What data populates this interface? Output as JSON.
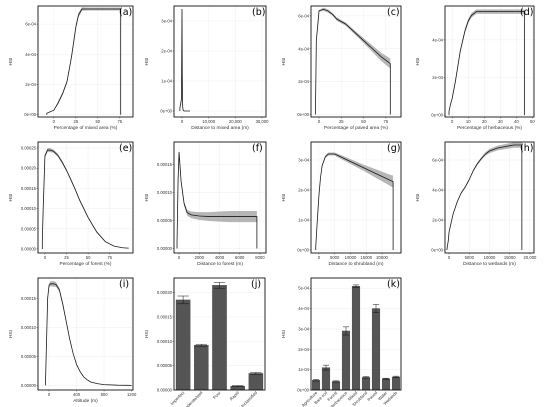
{
  "colors": {
    "line": "#1a1a1a",
    "band": "#9e9e9e",
    "bar": "#555555",
    "grid": "#ebebeb"
  },
  "chart_data": [
    {
      "label": "(a)",
      "type": "line",
      "xlabel": "Percentage of mixed area (%)",
      "ylabel": "HSI",
      "xlim": [
        -18,
        90
      ],
      "ylim": [
        -1.5e-05,
        0.00072
      ],
      "xticks": [
        {
          "v": 0,
          "t": "0"
        },
        {
          "v": 25,
          "t": "25"
        },
        {
          "v": 50,
          "t": "50"
        },
        {
          "v": 75,
          "t": "75"
        }
      ],
      "yticks": [
        {
          "v": 0,
          "t": "0e+00"
        },
        {
          "v": 0.0002,
          "t": "2e-04"
        },
        {
          "v": 0.0004,
          "t": "4e-04"
        },
        {
          "v": 0.0006,
          "t": "6e-04"
        }
      ],
      "x": [
        -8,
        -8,
        -8,
        0,
        5,
        10,
        15,
        20,
        22,
        25,
        28,
        32,
        38,
        50,
        62,
        70,
        76,
        76,
        76
      ],
      "y": [
        0,
        0,
        1e-05,
        3e-05,
        8e-05,
        0.00014,
        0.00022,
        0.00038,
        0.00046,
        0.00058,
        0.00066,
        0.0007,
        0.0007,
        0.0007,
        0.0007,
        0.0007,
        0.0007,
        5e-05,
        0
      ],
      "band": [
        0,
        0,
        0,
        0,
        1e-05,
        1e-05,
        1e-05,
        1e-05,
        1.5e-05,
        1.5e-05,
        1.5e-05,
        1.2e-05,
        1e-05,
        1e-05,
        1e-05,
        1e-05,
        1e-05,
        0,
        0
      ]
    },
    {
      "label": "(b)",
      "type": "line",
      "xlabel": "Distance to mixed area (m)",
      "ylabel": "HSI",
      "xlim": [
        -3000,
        31500
      ],
      "ylim": [
        -2e-05,
        0.00035
      ],
      "xticks": [
        {
          "v": 0,
          "t": "0"
        },
        {
          "v": 10000,
          "t": "10,000"
        },
        {
          "v": 20000,
          "t": "20,000"
        },
        {
          "v": 30000,
          "t": "30,000"
        }
      ],
      "yticks": [
        {
          "v": 0,
          "t": "0e+00"
        },
        {
          "v": 0.0001,
          "t": "1e-04"
        },
        {
          "v": 0.0002,
          "t": "2e-04"
        },
        {
          "v": 0.0003,
          "t": "3e-04"
        }
      ],
      "x": [
        -800,
        -800,
        -200,
        0,
        100,
        200,
        300,
        500,
        800,
        1500,
        3000
      ],
      "y": [
        0,
        1e-05,
        4e-05,
        0.00034,
        0.00012,
        3e-05,
        1e-05,
        2e-06,
        0,
        0,
        0
      ],
      "band": [
        0,
        0,
        0,
        5e-06,
        2e-06,
        0,
        0,
        0,
        0,
        0,
        0
      ]
    },
    {
      "label": "(c)",
      "type": "line",
      "xlabel": "Percentage of paved area (%)",
      "ylabel": "HSI",
      "xlim": [
        -9,
        92
      ],
      "ylim": [
        -1.5e-05,
        0.00066
      ],
      "xticks": [
        {
          "v": 0,
          "t": "0"
        },
        {
          "v": 25,
          "t": "25"
        },
        {
          "v": 50,
          "t": "50"
        },
        {
          "v": 75,
          "t": "75"
        }
      ],
      "yticks": [
        {
          "v": 0,
          "t": "0e+00"
        },
        {
          "v": 0.0002,
          "t": "2e-04"
        },
        {
          "v": 0.0004,
          "t": "4e-04"
        },
        {
          "v": 0.0006,
          "t": "6e-04"
        }
      ],
      "x": [
        -4,
        -4,
        -3,
        0,
        5,
        10,
        15,
        20,
        30,
        40,
        50,
        60,
        70,
        80,
        80,
        80
      ],
      "y": [
        0,
        3e-05,
        0.00045,
        0.00063,
        0.00064,
        0.00063,
        0.00061,
        0.00058,
        0.00055,
        0.0005,
        0.00045,
        0.0004,
        0.00035,
        0.00031,
        3e-05,
        0
      ],
      "band": [
        0,
        0,
        0,
        5e-06,
        1e-05,
        1e-05,
        8e-06,
        1e-05,
        1e-05,
        1.2e-05,
        1.5e-05,
        2e-05,
        2.5e-05,
        3e-05,
        0,
        0
      ]
    },
    {
      "label": "(d)",
      "type": "line",
      "xlabel": "Percentage of herbaceous (%)",
      "ylabel": "HSI",
      "xlim": [
        -4.5,
        51
      ],
      "ylim": [
        -1e-05,
        0.00058
      ],
      "xticks": [
        {
          "v": 0,
          "t": "0"
        },
        {
          "v": 10,
          "t": "10"
        },
        {
          "v": 20,
          "t": "20"
        },
        {
          "v": 30,
          "t": "30"
        },
        {
          "v": 40,
          "t": "40"
        },
        {
          "v": 50,
          "t": "50"
        }
      ],
      "yticks": [
        {
          "v": 0,
          "t": "0e+00"
        },
        {
          "v": 0.0002,
          "t": "2e-04"
        },
        {
          "v": 0.0004,
          "t": "4e-04"
        }
      ],
      "x": [
        -2,
        -2,
        -1,
        0,
        2,
        5,
        8,
        10,
        12,
        15,
        20,
        30,
        40,
        45,
        45,
        45
      ],
      "y": [
        0,
        2e-05,
        6e-05,
        9e-05,
        0.00018,
        0.00034,
        0.00045,
        0.0005,
        0.00053,
        0.00055,
        0.00055,
        0.00055,
        0.00055,
        0.00055,
        2e-05,
        0
      ],
      "band": [
        0,
        0,
        0,
        5e-06,
        8e-06,
        1e-05,
        1.2e-05,
        1.2e-05,
        1.2e-05,
        1.2e-05,
        1.2e-05,
        1.2e-05,
        1.2e-05,
        1.2e-05,
        0,
        0
      ]
    },
    {
      "label": "(e)",
      "type": "line",
      "xlabel": "Percentage of forest (%)",
      "ylabel": "HSI",
      "xlim": [
        -8,
        102
      ],
      "ylim": [
        -1e-05,
        0.000265
      ],
      "xticks": [
        {
          "v": 0,
          "t": "0"
        },
        {
          "v": 25,
          "t": "25"
        },
        {
          "v": 50,
          "t": "50"
        },
        {
          "v": 75,
          "t": "75"
        }
      ],
      "yticks": [
        {
          "v": 0,
          "t": "0.00000"
        },
        {
          "v": 5e-05,
          "t": "0.00005"
        },
        {
          "v": 0.0001,
          "t": "0.00010"
        },
        {
          "v": 0.00015,
          "t": "0.00015"
        },
        {
          "v": 0.0002,
          "t": "0.00020"
        },
        {
          "v": 0.00025,
          "t": "0.00025"
        }
      ],
      "x": [
        -3,
        -3,
        -2,
        0,
        3,
        6,
        10,
        15,
        20,
        25,
        30,
        35,
        40,
        50,
        60,
        70,
        80,
        90,
        97
      ],
      "y": [
        0,
        2e-05,
        0.0001,
        0.00023,
        0.000245,
        0.000245,
        0.000242,
        0.000232,
        0.000215,
        0.000195,
        0.000172,
        0.000148,
        0.000122,
        7.8e-05,
        4.2e-05,
        1.8e-05,
        7e-06,
        3e-06,
        2e-06
      ],
      "band": [
        0,
        0,
        0,
        4e-06,
        5e-06,
        5e-06,
        4e-06,
        4e-06,
        4e-06,
        3e-06,
        3e-06,
        3e-06,
        3e-06,
        2e-06,
        2e-06,
        1e-06,
        0,
        0,
        0
      ]
    },
    {
      "label": "(f)",
      "type": "line",
      "xlabel": "Distance to forest (m)",
      "ylabel": "HSI",
      "xlim": [
        -500,
        8600
      ],
      "ylim": [
        -8e-06,
        0.00019
      ],
      "xticks": [
        {
          "v": 0,
          "t": "0"
        },
        {
          "v": 2000,
          "t": "2000"
        },
        {
          "v": 4000,
          "t": "4000"
        },
        {
          "v": 6000,
          "t": "6000"
        },
        {
          "v": 8000,
          "t": "8000"
        }
      ],
      "yticks": [
        {
          "v": 0,
          "t": "0.00000"
        },
        {
          "v": 5e-05,
          "t": "0.00005"
        },
        {
          "v": 0.0001,
          "t": "0.00010"
        },
        {
          "v": 0.00015,
          "t": "0.00015"
        }
      ],
      "x": [
        -200,
        -200,
        -100,
        0,
        200,
        500,
        800,
        1200,
        2000,
        3000,
        4000,
        5000,
        6000,
        7000,
        7700,
        7700,
        7700
      ],
      "y": [
        0,
        1e-05,
        0.00012,
        0.000172,
        0.00012,
        8e-05,
        6.4e-05,
        6e-05,
        5.8e-05,
        5.7e-05,
        5.7e-05,
        5.7e-05,
        5.7e-05,
        5.7e-05,
        5.7e-05,
        5e-06,
        0
      ],
      "band": [
        0,
        0,
        0,
        4e-06,
        4e-06,
        4e-06,
        5e-06,
        6e-06,
        7e-06,
        8e-06,
        9e-06,
        1e-05,
        1e-05,
        1e-05,
        1e-05,
        0,
        0
      ]
    },
    {
      "label": "(g)",
      "type": "line",
      "xlabel": "Distance to shrubland (m)",
      "ylabel": "HSI",
      "xlim": [
        -2500,
        26000
      ],
      "ylim": [
        -1e-05,
        0.00036
      ],
      "xticks": [
        {
          "v": 0,
          "t": "0"
        },
        {
          "v": 5000,
          "t": "5000"
        },
        {
          "v": 10000,
          "t": "10000"
        },
        {
          "v": 15000,
          "t": "15000"
        },
        {
          "v": 20000,
          "t": "20000"
        }
      ],
      "yticks": [
        {
          "v": 0,
          "t": "0e+00"
        },
        {
          "v": 0.0001,
          "t": "1e-04"
        },
        {
          "v": 0.0002,
          "t": "2e-04"
        },
        {
          "v": 0.0003,
          "t": "3e-04"
        }
      ],
      "x": [
        -1000,
        -1000,
        -500,
        0,
        500,
        1000,
        2000,
        3000,
        4000,
        5000,
        6000,
        8000,
        10000,
        12000,
        14000,
        16000,
        18000,
        20000,
        22000,
        23500,
        23500,
        23500
      ],
      "y": [
        0,
        1e-05,
        0.0001,
        0.00018,
        0.00024,
        0.00028,
        0.00031,
        0.00032,
        0.00032,
        0.00032,
        0.000315,
        0.000305,
        0.000295,
        0.000285,
        0.000275,
        0.000265,
        0.000255,
        0.000245,
        0.000235,
        0.000228,
        5e-06,
        0
      ],
      "band": [
        0,
        0,
        0,
        2e-06,
        2e-06,
        3e-06,
        4e-06,
        5e-06,
        5e-06,
        5e-06,
        6e-06,
        7e-06,
        8e-06,
        9e-06,
        1e-05,
        1.2e-05,
        1.4e-05,
        1.6e-05,
        1.8e-05,
        2e-05,
        0,
        0
      ]
    },
    {
      "label": "(h)",
      "type": "line",
      "xlabel": "Distance to wetlands (m)",
      "ylabel": "HSI",
      "xlim": [
        -1000,
        21000
      ],
      "ylim": [
        -2e-05,
        0.00072
      ],
      "xticks": [
        {
          "v": 0,
          "t": "0"
        },
        {
          "v": 5000,
          "t": "5000"
        },
        {
          "v": 10000,
          "t": "10000"
        },
        {
          "v": 15000,
          "t": "15000"
        },
        {
          "v": 20000,
          "t": "20,000"
        }
      ],
      "yticks": [
        {
          "v": 0,
          "t": "0e+00"
        },
        {
          "v": 0.0002,
          "t": "2e-04"
        },
        {
          "v": 0.0004,
          "t": "4e-04"
        },
        {
          "v": 0.0006,
          "t": "6e-04"
        }
      ],
      "x": [
        -500,
        -500,
        -200,
        0,
        1000,
        2000,
        3000,
        4000,
        5000,
        6000,
        7000,
        8000,
        9000,
        10000,
        12000,
        14000,
        16000,
        18000,
        18000,
        18000
      ],
      "y": [
        0,
        1e-05,
        6e-05,
        0.00012,
        0.00024,
        0.00032,
        0.00038,
        0.00042,
        0.00047,
        0.00053,
        0.000575,
        0.00061,
        0.00064,
        0.00066,
        0.00068,
        0.00069,
        0.0007,
        0.0007,
        1e-05,
        0
      ],
      "band": [
        0,
        0,
        0,
        2e-06,
        3e-06,
        4e-06,
        5e-06,
        5e-06,
        6e-06,
        7e-06,
        8e-06,
        1e-05,
        1.2e-05,
        1.4e-05,
        1.6e-05,
        1.7e-05,
        1.8e-05,
        1.8e-05,
        0,
        0
      ]
    },
    {
      "label": "(i)",
      "type": "line",
      "xlabel": "Altitude (m)",
      "ylabel": "HSI",
      "xlim": [
        -160,
        1220
      ],
      "ylim": [
        -8e-06,
        0.000185
      ],
      "xticks": [
        {
          "v": 0,
          "t": "0"
        },
        {
          "v": 400,
          "t": "400"
        },
        {
          "v": 800,
          "t": "800"
        },
        {
          "v": 1200,
          "t": "1200"
        }
      ],
      "yticks": [
        {
          "v": 0,
          "t": "0.00000"
        },
        {
          "v": 5e-05,
          "t": "0.00005"
        },
        {
          "v": 0.0001,
          "t": "0.00010"
        },
        {
          "v": 0.00015,
          "t": "0.00015"
        }
      ],
      "x": [
        -50,
        -50,
        -20,
        0,
        20,
        60,
        100,
        150,
        200,
        250,
        300,
        350,
        400,
        450,
        500,
        550,
        600,
        700,
        800,
        1000,
        1200
      ],
      "y": [
        0,
        1e-05,
        0.00015,
        0.000172,
        0.000175,
        0.000175,
        0.000174,
        0.000165,
        0.00014,
        0.00011,
        8e-05,
        5.5e-05,
        3.6e-05,
        2.4e-05,
        1.5e-05,
        1e-05,
        6e-06,
        3e-06,
        1.2e-06,
        3e-07,
        0
      ],
      "band": [
        0,
        0,
        0,
        3e-06,
        4e-06,
        5e-06,
        4e-06,
        3e-06,
        3e-06,
        2e-06,
        2e-06,
        1e-06,
        1e-06,
        0,
        0,
        0,
        0,
        0,
        0,
        0,
        0
      ]
    },
    {
      "label": "(j)",
      "type": "bar",
      "xlabel": "Drainage classes",
      "ylabel": "HSI",
      "ylim": [
        0,
        0.00023
      ],
      "yticks": [
        {
          "v": 0,
          "t": "0.00000"
        },
        {
          "v": 5e-05,
          "t": "0.00005"
        },
        {
          "v": 0.0001,
          "t": "0.00010"
        },
        {
          "v": 0.00015,
          "t": "0.00015"
        },
        {
          "v": 0.0002,
          "t": "0.00020"
        }
      ],
      "categories": [
        "Imperfect",
        "Moderate/well",
        "Poor",
        "Rapid",
        "Unclassified"
      ],
      "values": [
        0.000185,
        9.2e-05,
        0.000215,
        8e-06,
        3.4e-05
      ],
      "errors": [
        8e-06,
        2e-06,
        6e-06,
        1e-06,
        2e-06
      ]
    },
    {
      "label": "(k)",
      "type": "bar",
      "xlabel": "LULC classes",
      "ylabel": "HSI",
      "ylim": [
        0,
        0.00055
      ],
      "yticks": [
        {
          "v": 0,
          "t": "0e+00"
        },
        {
          "v": 0.0001,
          "t": "1e-04"
        },
        {
          "v": 0.0002,
          "t": "2e-04"
        },
        {
          "v": 0.0003,
          "t": "3e-04"
        },
        {
          "v": 0.0004,
          "t": "4e-04"
        },
        {
          "v": 0.0005,
          "t": "5e-04"
        }
      ],
      "categories": [
        "Agriculture",
        "Bare soil",
        "Forest",
        "Herbaceous",
        "Mixed",
        "Shrubland",
        "Paved",
        "Water",
        "Wetlands"
      ],
      "values": [
        4.8e-05,
        0.00011,
        4.2e-05,
        0.00029,
        0.00051,
        6.2e-05,
        0.0004,
        5.5e-05,
        6.4e-05
      ],
      "errors": [
        4e-06,
        1.2e-05,
        3e-06,
        2e-05,
        6e-06,
        4e-06,
        2e-05,
        3e-06,
        4e-06
      ]
    }
  ]
}
